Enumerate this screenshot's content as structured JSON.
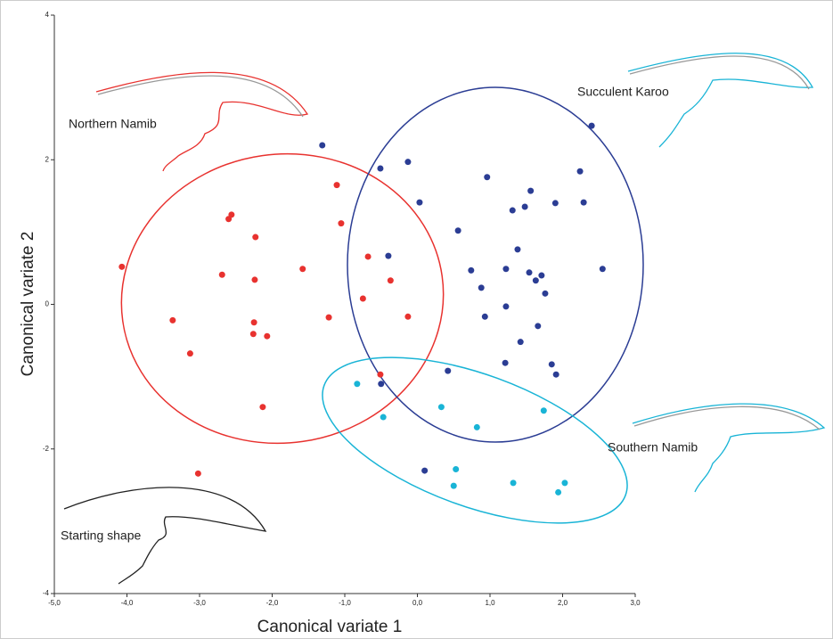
{
  "chart_data": {
    "type": "scatter",
    "x_label": "Canonical variate 1",
    "y_label": "Canonical variate 2",
    "xlim": [
      -5,
      3
    ],
    "ylim": [
      -4,
      4
    ],
    "xticks": [
      {
        "value": -5,
        "label": "-5,0"
      },
      {
        "value": -4,
        "label": "-4,0"
      },
      {
        "value": -3,
        "label": "-3,0"
      },
      {
        "value": -2,
        "label": "-2,0"
      },
      {
        "value": -1,
        "label": "-1,0"
      },
      {
        "value": 0,
        "label": "0,0"
      },
      {
        "value": 1,
        "label": "1,0"
      },
      {
        "value": 2,
        "label": "2,0"
      },
      {
        "value": 3,
        "label": "3,0"
      }
    ],
    "yticks": [
      -4,
      -2,
      0,
      2,
      4
    ],
    "annotations": [
      "Northern Namib",
      "Succulent Karoo",
      "Southern Namib",
      "Starting shape"
    ],
    "series": [
      {
        "color": "#e8322f",
        "x": [
          -4.07,
          -3.37,
          -3.13,
          -3.02,
          -2.6,
          -2.56,
          -2.69,
          -2.23,
          -2.24,
          -2.25,
          -2.26,
          -2.07,
          -2.13,
          -1.58,
          -1.11,
          -1.05,
          -1.22,
          -0.68,
          -0.75,
          -0.37,
          -0.13,
          -0.51
        ],
        "y": [
          0.52,
          -0.22,
          -0.68,
          -2.34,
          1.18,
          1.24,
          0.41,
          0.93,
          0.34,
          -0.25,
          -0.41,
          -0.44,
          -1.42,
          0.49,
          1.65,
          1.12,
          -0.18,
          0.66,
          0.08,
          0.33,
          -0.17,
          -0.97
        ]
      },
      {
        "color": "#2b3d94",
        "x": [
          -1.31,
          -0.51,
          -0.13,
          0.03,
          -0.4,
          0.56,
          0.74,
          0.88,
          0.93,
          0.96,
          1.22,
          1.22,
          1.31,
          1.48,
          1.56,
          1.38,
          1.54,
          1.63,
          1.71,
          1.76,
          1.66,
          1.42,
          1.21,
          1.9,
          1.85,
          1.91,
          2.24,
          2.29,
          2.4,
          2.55,
          0.42,
          -0.5,
          0.1
        ],
        "y": [
          2.2,
          1.88,
          1.97,
          1.41,
          0.67,
          1.02,
          0.47,
          0.23,
          -0.17,
          1.76,
          -0.03,
          0.49,
          1.3,
          1.35,
          1.57,
          0.76,
          0.44,
          0.33,
          0.4,
          0.15,
          -0.3,
          -0.52,
          -0.81,
          1.4,
          -0.83,
          -0.97,
          1.84,
          1.41,
          2.47,
          0.49,
          -0.92,
          -1.1,
          -2.3
        ]
      },
      {
        "color": "#19b4d6",
        "x": [
          -0.83,
          -0.47,
          0.33,
          0.82,
          0.53,
          0.5,
          1.32,
          1.74,
          1.94,
          2.03
        ],
        "y": [
          -1.1,
          -1.56,
          -1.42,
          -1.7,
          -2.28,
          -2.51,
          -2.47,
          -1.47,
          -2.6,
          -2.47
        ]
      }
    ]
  }
}
